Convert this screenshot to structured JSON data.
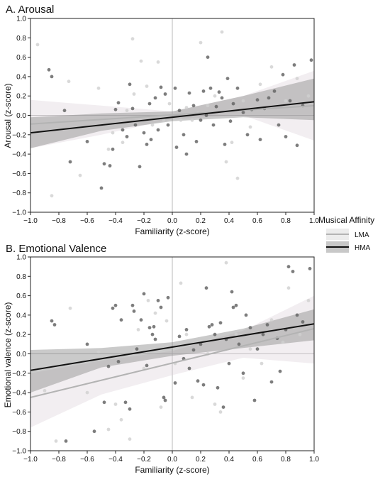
{
  "legend": {
    "title": "Musical Affinity",
    "items": [
      {
        "label": "LMA",
        "color": "#b3b3b3"
      },
      {
        "label": "HMA",
        "color": "#111111"
      }
    ]
  },
  "chart_data": [
    {
      "type": "scatter",
      "title": "A. Arousal",
      "xlabel": "Familiarity (z-score)",
      "ylabel": "Arousal (z-score)",
      "xlim": [
        -1.0,
        1.0
      ],
      "ylim": [
        -1.0,
        1.0
      ],
      "xticks": [
        "−1.0",
        "−0.8",
        "−0.6",
        "−0.4",
        "−0.2",
        "0.0",
        "0.2",
        "0.4",
        "0.6",
        "0.8",
        "1.0"
      ],
      "yticks": [
        "−1.0",
        "−0.8",
        "−0.6",
        "−0.4",
        "−0.2",
        "0.0",
        "0.2",
        "0.4",
        "0.6",
        "0.8",
        "1.0"
      ],
      "reference_lines": {
        "x": 0,
        "y": 0
      },
      "series": [
        {
          "name": "LMA",
          "color": "#b3b3b3",
          "regression": {
            "x": [
              -1.0,
              1.0
            ],
            "y": [
              -0.09,
              0.1
            ]
          },
          "ci_upper": {
            "x": [
              -1.0,
              -0.5,
              0.0,
              0.5,
              1.0
            ],
            "y": [
              0.16,
              0.1,
              0.04,
              0.2,
              0.46
            ]
          },
          "ci_lower": {
            "x": [
              -1.0,
              -0.5,
              0.0,
              0.5,
              1.0
            ],
            "y": [
              -0.34,
              -0.2,
              -0.04,
              0.0,
              -0.26
            ]
          },
          "points": [
            [
              -0.95,
              0.73
            ],
            [
              -0.85,
              -0.83
            ],
            [
              -0.73,
              0.35
            ],
            [
              -0.65,
              -0.62
            ],
            [
              -0.52,
              0.28
            ],
            [
              -0.45,
              -0.35
            ],
            [
              -0.42,
              -0.18
            ],
            [
              -0.35,
              -0.28
            ],
            [
              -0.32,
              0.05
            ],
            [
              -0.28,
              0.79
            ],
            [
              -0.27,
              0.22
            ],
            [
              -0.22,
              0.56
            ],
            [
              -0.18,
              0.3
            ],
            [
              -0.14,
              -0.1
            ],
            [
              -0.1,
              0.55
            ],
            [
              -0.06,
              -0.05
            ],
            [
              -0.02,
              0.12
            ],
            [
              0.06,
              -0.05
            ],
            [
              0.1,
              0.08
            ],
            [
              0.14,
              -0.05
            ],
            [
              0.18,
              0.02
            ],
            [
              0.2,
              0.75
            ],
            [
              0.25,
              0.1
            ],
            [
              0.3,
              0.2
            ],
            [
              0.35,
              0.86
            ],
            [
              0.38,
              -0.48
            ],
            [
              0.42,
              -0.28
            ],
            [
              0.46,
              -0.65
            ],
            [
              0.5,
              0.15
            ],
            [
              0.55,
              -0.12
            ],
            [
              0.62,
              0.32
            ],
            [
              0.7,
              0.5
            ],
            [
              0.8,
              0.15
            ],
            [
              0.88,
              0.38
            ],
            [
              0.96,
              0.2
            ]
          ]
        },
        {
          "name": "HMA",
          "color": "#111111",
          "regression": {
            "x": [
              -1.0,
              1.0
            ],
            "y": [
              -0.18,
              0.14
            ]
          },
          "ci_upper": {
            "x": [
              -1.0,
              -0.5,
              0.0,
              0.5,
              1.0
            ],
            "y": [
              -0.02,
              0.02,
              0.04,
              0.2,
              0.38
            ]
          },
          "ci_lower": {
            "x": [
              -1.0,
              -0.5,
              0.0,
              0.5,
              1.0
            ],
            "y": [
              -0.34,
              -0.16,
              -0.06,
              -0.02,
              -0.05
            ]
          },
          "points": [
            [
              -0.87,
              0.47
            ],
            [
              -0.85,
              0.4
            ],
            [
              -0.76,
              0.05
            ],
            [
              -0.72,
              -0.48
            ],
            [
              -0.6,
              -0.27
            ],
            [
              -0.5,
              -0.75
            ],
            [
              -0.48,
              -0.5
            ],
            [
              -0.44,
              -0.52
            ],
            [
              -0.42,
              -0.35
            ],
            [
              -0.4,
              0.06
            ],
            [
              -0.38,
              0.13
            ],
            [
              -0.35,
              -0.15
            ],
            [
              -0.32,
              -0.22
            ],
            [
              -0.3,
              0.32
            ],
            [
              -0.28,
              0.07
            ],
            [
              -0.26,
              -0.1
            ],
            [
              -0.23,
              -0.53
            ],
            [
              -0.2,
              -0.18
            ],
            [
              -0.18,
              -0.3
            ],
            [
              -0.16,
              0.12
            ],
            [
              -0.15,
              -0.25
            ],
            [
              -0.12,
              0.18
            ],
            [
              -0.1,
              -0.15
            ],
            [
              -0.08,
              0.29
            ],
            [
              -0.05,
              0.22
            ],
            [
              -0.03,
              -0.1
            ],
            [
              0.02,
              0.28
            ],
            [
              0.03,
              -0.33
            ],
            [
              0.05,
              0.05
            ],
            [
              0.08,
              -0.2
            ],
            [
              0.1,
              -0.4
            ],
            [
              0.12,
              0.23
            ],
            [
              0.15,
              0.1
            ],
            [
              0.17,
              -0.27
            ],
            [
              0.2,
              -0.05
            ],
            [
              0.22,
              0.25
            ],
            [
              0.24,
              0.0
            ],
            [
              0.25,
              0.6
            ],
            [
              0.27,
              0.28
            ],
            [
              0.29,
              -0.1
            ],
            [
              0.31,
              0.09
            ],
            [
              0.33,
              0.24
            ],
            [
              0.35,
              0.18
            ],
            [
              0.37,
              -0.3
            ],
            [
              0.39,
              0.38
            ],
            [
              0.41,
              -0.06
            ],
            [
              0.43,
              0.12
            ],
            [
              0.46,
              0.28
            ],
            [
              0.5,
              0.03
            ],
            [
              0.53,
              -0.2
            ],
            [
              0.56,
              0.06
            ],
            [
              0.6,
              0.16
            ],
            [
              0.62,
              -0.25
            ],
            [
              0.65,
              0.07
            ],
            [
              0.68,
              0.18
            ],
            [
              0.72,
              0.25
            ],
            [
              0.75,
              -0.1
            ],
            [
              0.78,
              0.42
            ],
            [
              0.8,
              -0.22
            ],
            [
              0.83,
              0.15
            ],
            [
              0.86,
              0.52
            ],
            [
              0.88,
              -0.31
            ],
            [
              0.92,
              0.1
            ],
            [
              0.98,
              0.57
            ]
          ]
        }
      ]
    },
    {
      "type": "scatter",
      "title": "B. Emotional Valence",
      "xlabel": "Familiarity (z-score)",
      "ylabel": "Emotional valence (z-score)",
      "xlim": [
        -1.0,
        1.0
      ],
      "ylim": [
        -1.0,
        1.0
      ],
      "xticks": [
        "−1.0",
        "−0.8",
        "−0.6",
        "−0.4",
        "−0.2",
        "0.0",
        "0.2",
        "0.4",
        "0.6",
        "0.8",
        "1.0"
      ],
      "yticks": [
        "−1.0",
        "−0.8",
        "−0.6",
        "−0.4",
        "−0.2",
        "0.0",
        "0.2",
        "0.4",
        "0.6",
        "0.8",
        "1.0"
      ],
      "reference_lines": {
        "x": 0,
        "y": 0
      },
      "series": [
        {
          "name": "LMA",
          "color": "#b3b3b3",
          "regression": {
            "x": [
              -1.0,
              1.0
            ],
            "y": [
              -0.45,
              0.26
            ]
          },
          "ci_upper": {
            "x": [
              -1.0,
              -0.5,
              0.0,
              0.5,
              1.0
            ],
            "y": [
              -0.2,
              -0.07,
              0.03,
              0.24,
              0.6
            ]
          },
          "ci_lower": {
            "x": [
              -1.0,
              -0.5,
              0.0,
              0.5,
              1.0
            ],
            "y": [
              -0.76,
              -0.42,
              -0.22,
              -0.04,
              -0.1
            ]
          },
          "points": [
            [
              -0.9,
              -0.38
            ],
            [
              -0.82,
              -0.9
            ],
            [
              -0.72,
              0.47
            ],
            [
              -0.6,
              -0.4
            ],
            [
              -0.52,
              0.02
            ],
            [
              -0.45,
              -0.78
            ],
            [
              -0.4,
              -0.52
            ],
            [
              -0.36,
              -0.68
            ],
            [
              -0.3,
              -0.88
            ],
            [
              -0.27,
              0.03
            ],
            [
              -0.24,
              0.25
            ],
            [
              -0.2,
              -0.15
            ],
            [
              -0.17,
              0.55
            ],
            [
              -0.12,
              0.42
            ],
            [
              -0.08,
              -0.55
            ],
            [
              -0.04,
              0.34
            ],
            [
              0.02,
              -0.1
            ],
            [
              0.06,
              0.73
            ],
            [
              0.1,
              0.2
            ],
            [
              0.14,
              -0.45
            ],
            [
              0.2,
              0.13
            ],
            [
              0.25,
              0.0
            ],
            [
              0.3,
              -0.52
            ],
            [
              0.34,
              -0.6
            ],
            [
              0.38,
              0.94
            ],
            [
              0.45,
              0.2
            ],
            [
              0.5,
              -0.25
            ],
            [
              0.55,
              0.05
            ],
            [
              0.63,
              -0.1
            ],
            [
              0.7,
              0.35
            ],
            [
              0.78,
              0.12
            ],
            [
              0.82,
              0.68
            ],
            [
              0.9,
              0.2
            ],
            [
              0.96,
              0.55
            ]
          ]
        },
        {
          "name": "HMA",
          "color": "#111111",
          "regression": {
            "x": [
              -1.0,
              1.0
            ],
            "y": [
              -0.17,
              0.31
            ]
          },
          "ci_upper": {
            "x": [
              -1.0,
              -0.5,
              0.0,
              0.5,
              1.0
            ],
            "y": [
              0.04,
              0.06,
              0.12,
              0.26,
              0.46
            ]
          },
          "ci_lower": {
            "x": [
              -1.0,
              -0.5,
              0.0,
              0.5,
              1.0
            ],
            "y": [
              -0.4,
              -0.14,
              -0.02,
              0.06,
              0.14
            ]
          },
          "points": [
            [
              -0.85,
              0.34
            ],
            [
              -0.83,
              0.3
            ],
            [
              -0.75,
              -0.9
            ],
            [
              -0.6,
              0.1
            ],
            [
              -0.55,
              -0.8
            ],
            [
              -0.48,
              -0.5
            ],
            [
              -0.45,
              -0.13
            ],
            [
              -0.42,
              0.47
            ],
            [
              -0.4,
              0.5
            ],
            [
              -0.38,
              -0.08
            ],
            [
              -0.36,
              0.35
            ],
            [
              -0.33,
              -0.5
            ],
            [
              -0.3,
              -0.57
            ],
            [
              -0.28,
              0.5
            ],
            [
              -0.27,
              0.44
            ],
            [
              -0.25,
              0.05
            ],
            [
              -0.22,
              0.35
            ],
            [
              -0.2,
              0.62
            ],
            [
              -0.18,
              -0.12
            ],
            [
              -0.16,
              0.27
            ],
            [
              -0.14,
              0.2
            ],
            [
              -0.13,
              0.28
            ],
            [
              -0.12,
              0.15
            ],
            [
              -0.1,
              0.55
            ],
            [
              -0.08,
              0.48
            ],
            [
              -0.06,
              -0.45
            ],
            [
              -0.05,
              -0.48
            ],
            [
              -0.03,
              0.58
            ],
            [
              0.02,
              -0.3
            ],
            [
              0.05,
              0.18
            ],
            [
              0.08,
              -0.05
            ],
            [
              0.1,
              0.25
            ],
            [
              0.12,
              -0.15
            ],
            [
              0.15,
              0.04
            ],
            [
              0.18,
              -0.28
            ],
            [
              0.2,
              0.1
            ],
            [
              0.22,
              -0.32
            ],
            [
              0.24,
              0.68
            ],
            [
              0.26,
              0.28
            ],
            [
              0.28,
              0.3
            ],
            [
              0.3,
              0.2
            ],
            [
              0.32,
              -0.35
            ],
            [
              0.34,
              0.32
            ],
            [
              0.36,
              -0.55
            ],
            [
              0.38,
              0.15
            ],
            [
              0.4,
              -0.1
            ],
            [
              0.42,
              0.64
            ],
            [
              0.43,
              0.48
            ],
            [
              0.45,
              0.5
            ],
            [
              0.47,
              0.1
            ],
            [
              0.5,
              -0.2
            ],
            [
              0.52,
              0.4
            ],
            [
              0.55,
              0.27
            ],
            [
              0.58,
              -0.48
            ],
            [
              0.6,
              0.05
            ],
            [
              0.64,
              0.2
            ],
            [
              0.67,
              0.3
            ],
            [
              0.7,
              -0.29
            ],
            [
              0.74,
              0.16
            ],
            [
              0.76,
              -0.18
            ],
            [
              0.8,
              0.25
            ],
            [
              0.82,
              0.9
            ],
            [
              0.85,
              0.85
            ],
            [
              0.88,
              0.4
            ],
            [
              0.92,
              0.33
            ],
            [
              0.97,
              0.88
            ]
          ]
        }
      ]
    }
  ]
}
